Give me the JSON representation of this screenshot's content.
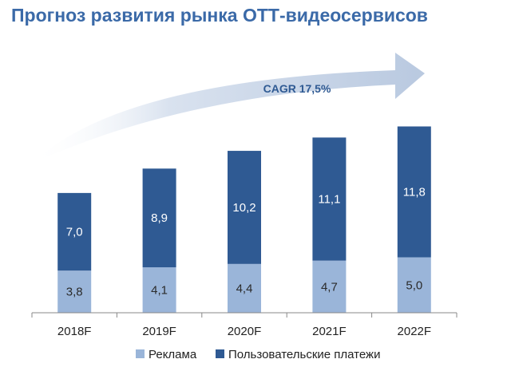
{
  "title": "Прогноз развития рынка ОТТ-видеосервисов",
  "colors": {
    "title": "#3b6aa8",
    "ads": "#9ab5d9",
    "payments": "#2f5a93",
    "arrow": "#c9d5e8",
    "axis": "#888888"
  },
  "chart_data": {
    "type": "bar",
    "stacked": true,
    "categories": [
      "2018F",
      "2019F",
      "2020F",
      "2021F",
      "2022F"
    ],
    "series": [
      {
        "name": "Реклама",
        "values": [
          3.8,
          4.1,
          4.4,
          4.7,
          5.0
        ],
        "labels": [
          "3,8",
          "4,1",
          "4,4",
          "4,7",
          "5,0"
        ],
        "color": "#9ab5d9"
      },
      {
        "name": "Пользовательские платежи",
        "values": [
          7.0,
          8.9,
          10.2,
          11.1,
          11.8
        ],
        "labels": [
          "7,0",
          "8,9",
          "10,2",
          "11,1",
          "11,8"
        ],
        "color": "#2f5a93"
      }
    ],
    "annotation": "CAGR 17,5%",
    "ylim": [
      0,
      17
    ],
    "legend_position": "bottom"
  }
}
